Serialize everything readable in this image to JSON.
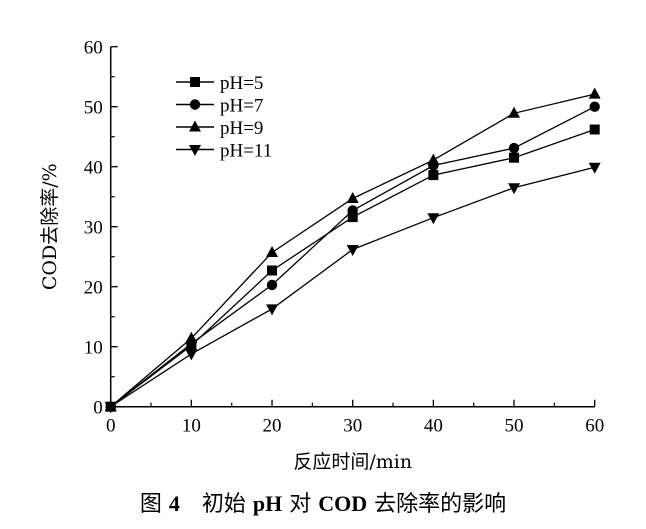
{
  "chart_data": {
    "type": "line",
    "xlabel": "反应时间/min",
    "ylabel": "COD去除率/%",
    "xlim": [
      0,
      60
    ],
    "ylim": [
      0,
      60
    ],
    "xticks": [
      0,
      10,
      20,
      30,
      40,
      50,
      60
    ],
    "yticks": [
      0,
      10,
      20,
      30,
      40,
      50,
      60
    ],
    "grid": false,
    "legend_position": "top-left",
    "x": [
      0,
      10,
      20,
      30,
      40,
      50,
      60
    ],
    "series": [
      {
        "name": "pH=5",
        "marker": "square",
        "values": [
          0,
          10.2,
          22.7,
          31.6,
          38.6,
          41.5,
          46.2
        ]
      },
      {
        "name": "pH=7",
        "marker": "circle",
        "values": [
          0,
          10.5,
          20.3,
          32.7,
          40.2,
          43.1,
          50.0
        ]
      },
      {
        "name": "pH=9",
        "marker": "triangle-up",
        "values": [
          0,
          11.4,
          25.7,
          34.7,
          41.1,
          48.9,
          52.1
        ]
      },
      {
        "name": "pH=11",
        "marker": "triangle-down",
        "values": [
          0,
          8.8,
          16.3,
          26.2,
          31.5,
          36.5,
          39.9
        ]
      }
    ],
    "color": "#000000"
  },
  "caption": {
    "fig_prefix": "图 ",
    "fig_number": "4",
    "text1": "　初始 ",
    "bold1": "pH",
    "text2": " 对 ",
    "bold2": "COD",
    "text3": " 去除率的影响"
  }
}
